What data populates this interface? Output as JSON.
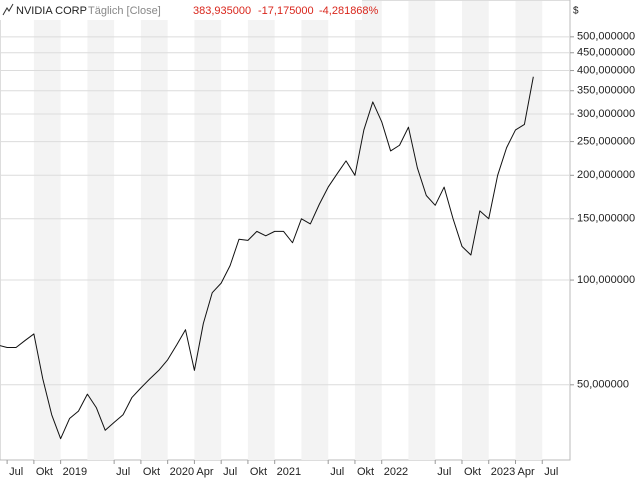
{
  "chart_data": {
    "type": "line",
    "title": "NVIDIA CORP",
    "subtitle": "Täglich [Close]",
    "annotations": [
      "383,935000",
      "-17,175000",
      "-4,281868%"
    ],
    "y_axis_label": "$",
    "log_scale": true,
    "grid": true,
    "x": [
      "2018-06",
      "2018-07",
      "2018-08",
      "2018-09",
      "2018-10",
      "2018-11",
      "2018-12",
      "2019-01",
      "2019-02",
      "2019-03",
      "2019-04",
      "2019-05",
      "2019-06",
      "2019-07",
      "2019-08",
      "2019-09",
      "2019-10",
      "2019-11",
      "2019-12",
      "2020-01",
      "2020-02",
      "2020-03",
      "2020-04",
      "2020-05",
      "2020-06",
      "2020-07",
      "2020-08",
      "2020-09",
      "2020-10",
      "2020-11",
      "2020-12",
      "2021-01",
      "2021-02",
      "2021-03",
      "2021-04",
      "2021-05",
      "2021-06",
      "2021-07",
      "2021-08",
      "2021-09",
      "2021-10",
      "2021-11",
      "2021-12",
      "2022-01",
      "2022-02",
      "2022-03",
      "2022-04",
      "2022-05",
      "2022-06",
      "2022-07",
      "2022-08",
      "2022-09",
      "2022-10",
      "2022-11",
      "2022-12",
      "2023-01",
      "2023-02",
      "2023-03",
      "2023-04",
      "2023-05",
      "2023-06"
    ],
    "series": [
      {
        "name": "NVIDIA CORP",
        "color": "#111111",
        "values": [
          65,
          64,
          64,
          67,
          70,
          52,
          41,
          35,
          40,
          42,
          47,
          43,
          37,
          39,
          41,
          46,
          49,
          52,
          55,
          59,
          65,
          72,
          55,
          75,
          92,
          98,
          110,
          131,
          130,
          138,
          134,
          138,
          138,
          128,
          150,
          145,
          165,
          185,
          202,
          220,
          200,
          270,
          325,
          285,
          235,
          244,
          275,
          210,
          175,
          164,
          185,
          150,
          125,
          118,
          158,
          150,
          200,
          240,
          270,
          280,
          383.935
        ]
      }
    ],
    "xlim": [
      "2018-06",
      "2023-10"
    ],
    "xticks": [
      {
        "value": "2018-07",
        "label": "Jul"
      },
      {
        "value": "2018-10",
        "label": "Okt"
      },
      {
        "value": "2019-01",
        "label": "2019"
      },
      {
        "value": "2019-07",
        "label": "Jul"
      },
      {
        "value": "2019-10",
        "label": "Okt"
      },
      {
        "value": "2020-01",
        "label": "2020"
      },
      {
        "value": "2020-04",
        "label": "Apr"
      },
      {
        "value": "2020-07",
        "label": "Jul"
      },
      {
        "value": "2020-10",
        "label": "Okt"
      },
      {
        "value": "2021-01",
        "label": "2021"
      },
      {
        "value": "2021-07",
        "label": "Jul"
      },
      {
        "value": "2021-10",
        "label": "Okt"
      },
      {
        "value": "2022-01",
        "label": "2022"
      },
      {
        "value": "2022-07",
        "label": "Jul"
      },
      {
        "value": "2022-10",
        "label": "Okt"
      },
      {
        "value": "2023-01",
        "label": "2023"
      },
      {
        "value": "2023-04",
        "label": "Apr"
      },
      {
        "value": "2023-07",
        "label": "Jul"
      }
    ],
    "ylim": [
      30.4,
      638
    ],
    "yticks": [
      {
        "value": 50,
        "label": "50,000000"
      },
      {
        "value": 100,
        "label": "100,000000"
      },
      {
        "value": 150,
        "label": "150,000000"
      },
      {
        "value": 200,
        "label": "200,000000"
      },
      {
        "value": 250,
        "label": "250,000000"
      },
      {
        "value": 300,
        "label": "300,000000"
      },
      {
        "value": 350,
        "label": "350,000000"
      },
      {
        "value": 400,
        "label": "400,000000"
      },
      {
        "value": 450,
        "label": "450,000000"
      },
      {
        "value": 500,
        "label": "500,000000"
      }
    ]
  }
}
